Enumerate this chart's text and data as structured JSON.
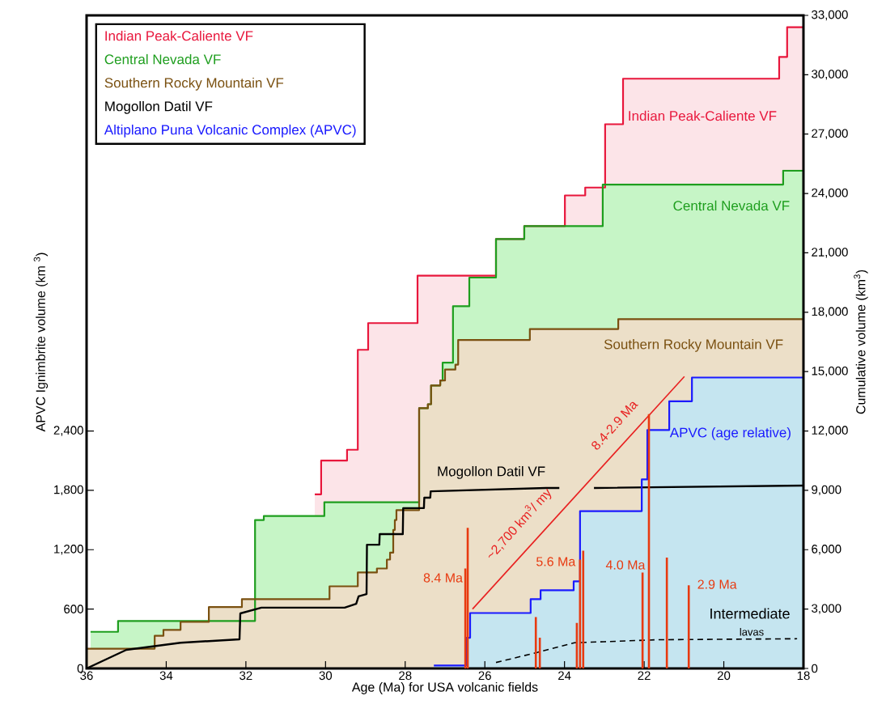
{
  "chart_data": {
    "type": "area",
    "xlabel": "Age (Ma) for USA volcanic fields",
    "ylabel": "APVC Ignimbrite volume (km $^{3}$)",
    "y2label": "Cumulative volume (km$^{3}$)",
    "xlim": [
      36,
      18
    ],
    "xticks": [
      36,
      34,
      32,
      30,
      28,
      26,
      24,
      22,
      20,
      18
    ],
    "ylim": [
      0,
      6600
    ],
    "yticks": [
      0,
      600,
      {
        "value": 1200,
        "label": "1,200"
      },
      {
        "value": 1800,
        "label": "1,800"
      },
      {
        "value": 2400,
        "label": "2,400"
      }
    ],
    "y2lim": [
      0,
      33000
    ],
    "y2ticks": [
      0,
      {
        "value": 3000,
        "label": "3,000"
      },
      {
        "value": 6000,
        "label": "6,000"
      },
      {
        "value": 9000,
        "label": "9,000"
      },
      {
        "value": 12000,
        "label": "12,000"
      },
      {
        "value": 15000,
        "label": "15,000"
      },
      {
        "value": 18000,
        "label": "18,000"
      },
      {
        "value": 21000,
        "label": "21,000"
      },
      {
        "value": 24000,
        "label": "24,000"
      },
      {
        "value": 27000,
        "label": "27,000"
      },
      {
        "value": 30000,
        "label": "30,000"
      },
      {
        "value": 33000,
        "label": "33,000"
      }
    ],
    "legend": "top left",
    "series": [
      {
        "axis": "y2",
        "color": "#fce4e8",
        "x": [
          30.27,
          30.11,
          29.46,
          29.19,
          28.93,
          27.69,
          25.72,
          25.01,
          23.99,
          23.48,
          22.98,
          22.53,
          18.61,
          18.41,
          18.0
        ],
        "values": [
          8800,
          10500,
          11050,
          16100,
          17450,
          19850,
          21700,
          22350,
          23900,
          24300,
          27500,
          29800,
          30900,
          32400,
          32400
        ]
      },
      {
        "axis": "y2",
        "color": "#c6f5c6",
        "x": [
          35.9,
          35.21,
          31.77,
          31.55,
          30.03,
          27.65,
          27.43,
          27.35,
          27.12,
          27.06,
          26.8,
          26.39,
          25.72,
          25.01,
          23.04,
          18.51,
          18.0
        ],
        "values": [
          1850,
          2400,
          7500,
          7700,
          8400,
          13150,
          13350,
          14300,
          14550,
          15450,
          18300,
          19750,
          21700,
          22350,
          24450,
          25150,
          25150
        ]
      },
      {
        "axis": "y2",
        "color": "#ecdfc8",
        "x": [
          36.0,
          34.29,
          34.07,
          33.64,
          32.93,
          32.1,
          29.9,
          29.19,
          28.71,
          28.46,
          28.38,
          28.3,
          28.26,
          28.22,
          27.65,
          27.43,
          27.35,
          27.12,
          27.0,
          26.74,
          26.67,
          24.87,
          22.65,
          18.0
        ],
        "values": [
          1000,
          1650,
          1950,
          2350,
          3100,
          3500,
          4150,
          4850,
          5050,
          5500,
          5850,
          7000,
          7500,
          8000,
          13150,
          13350,
          14300,
          14550,
          15100,
          15350,
          16600,
          17150,
          17650,
          17650
        ]
      },
      {
        "axis": "y2",
        "color": "#c5e5f0",
        "x": [
          27.28,
          26.47,
          26.37,
          24.85,
          24.6,
          23.77,
          23.61,
          22.06,
          21.92,
          21.37,
          20.8,
          18.0
        ],
        "values": [
          150,
          1550,
          2800,
          3500,
          3950,
          4400,
          7950,
          9550,
          12050,
          13500,
          14700,
          14700
        ]
      },
      {
        "name": "Indian Peak-Caliente VF",
        "type": "step",
        "axis": "y2",
        "color": "#e8173c",
        "x": [
          30.27,
          30.11,
          29.46,
          29.19,
          28.93,
          27.69,
          25.72,
          25.01,
          23.99,
          23.48,
          22.98,
          22.53,
          18.61,
          18.41,
          18.0
        ],
        "values": [
          8800,
          10500,
          11050,
          16100,
          17450,
          19850,
          21700,
          22350,
          23900,
          24300,
          27500,
          29800,
          30900,
          32400,
          32400
        ]
      },
      {
        "name": "Central Nevada VF",
        "type": "step",
        "axis": "y2",
        "color": "#1e9e1e",
        "x": [
          35.9,
          35.21,
          31.77,
          31.55,
          30.03,
          27.65,
          27.43,
          27.35,
          27.12,
          27.06,
          26.8,
          26.39,
          25.72,
          25.01,
          23.04,
          18.51,
          18.0
        ],
        "values": [
          1850,
          2400,
          7500,
          7700,
          8400,
          13150,
          13350,
          14300,
          14550,
          15450,
          18300,
          19750,
          21700,
          22350,
          24450,
          25150,
          25150
        ]
      },
      {
        "name": "Southern Rocky Mountain VF",
        "type": "step",
        "axis": "y2",
        "color": "#7a5010",
        "x": [
          36.0,
          34.29,
          34.07,
          33.64,
          32.93,
          32.1,
          29.9,
          29.19,
          28.71,
          28.46,
          28.38,
          28.3,
          28.26,
          28.22,
          27.65,
          27.43,
          27.35,
          27.12,
          27.0,
          26.74,
          26.67,
          24.87,
          22.65,
          18.0
        ],
        "values": [
          1000,
          1650,
          1950,
          2350,
          3100,
          3500,
          4150,
          4850,
          5050,
          5500,
          5850,
          7000,
          7500,
          8000,
          13150,
          13350,
          14300,
          14550,
          15100,
          15350,
          16600,
          17150,
          17650,
          17650
        ]
      },
      {
        "name": "Mogollon Datil VF",
        "type": "line",
        "axis": "y2",
        "color": "#000000",
        "x": [
          36.0,
          35.0,
          33.64,
          32.16,
          32.14,
          31.61,
          29.52,
          29.23,
          29.17,
          28.97,
          28.96,
          28.65,
          28.64,
          28.06,
          28.05,
          27.53,
          27.52,
          27.37,
          27.36,
          24.46,
          24.13,
          23.7,
          23.26,
          18.0
        ],
        "values": [
          0,
          940,
          1300,
          1470,
          2780,
          3070,
          3070,
          3270,
          3640,
          3760,
          6250,
          6250,
          6790,
          6790,
          8100,
          8100,
          8630,
          8630,
          8950,
          9120,
          9120,
          null,
          9120,
          9240
        ]
      },
      {
        "name": "Altiplano Puna Volcanic Complex (APVC)",
        "type": "step",
        "axis": "y2",
        "color": "#1a1aff",
        "x": [
          27.28,
          26.47,
          26.37,
          24.85,
          24.6,
          23.77,
          23.61,
          22.06,
          21.92,
          21.37,
          20.8,
          18.0
        ],
        "values": [
          150,
          1550,
          2800,
          3500,
          3950,
          4400,
          7950,
          9550,
          12050,
          13500,
          14700,
          14700
        ]
      },
      {
        "type": "line",
        "axis": "y2",
        "color": "#000000",
        "line_style": "dashed",
        "x": [
          25.72,
          24.7,
          23.75,
          23.0,
          21.66,
          18.16
        ],
        "values": [
          300,
          800,
          1300,
          1350,
          1450,
          1500
        ]
      },
      {
        "type": "line",
        "axis": "y2",
        "color": "#e82020",
        "x": [
          26.31,
          20.99
        ],
        "values": [
          3000,
          14750
        ]
      },
      {
        "type": "bar",
        "color": "#e83a10",
        "x": [
          26.49,
          26.43,
          24.72,
          24.62,
          23.69,
          23.61,
          23.53,
          22.04,
          21.88,
          21.43,
          20.88
        ],
        "values": [
          1010,
          1420,
          520,
          310,
          460,
          1100,
          1190,
          970,
          2570,
          1120,
          840
        ]
      }
    ],
    "annotations": [
      "~2,700 km$^{3}$/ my",
      "8.4-2.9 Ma",
      "8.4 Ma",
      "5.6 Ma",
      "4.0 Ma",
      "2.9 Ma",
      "Intermediate",
      "lavas",
      "APVC (age relative)"
    ]
  }
}
